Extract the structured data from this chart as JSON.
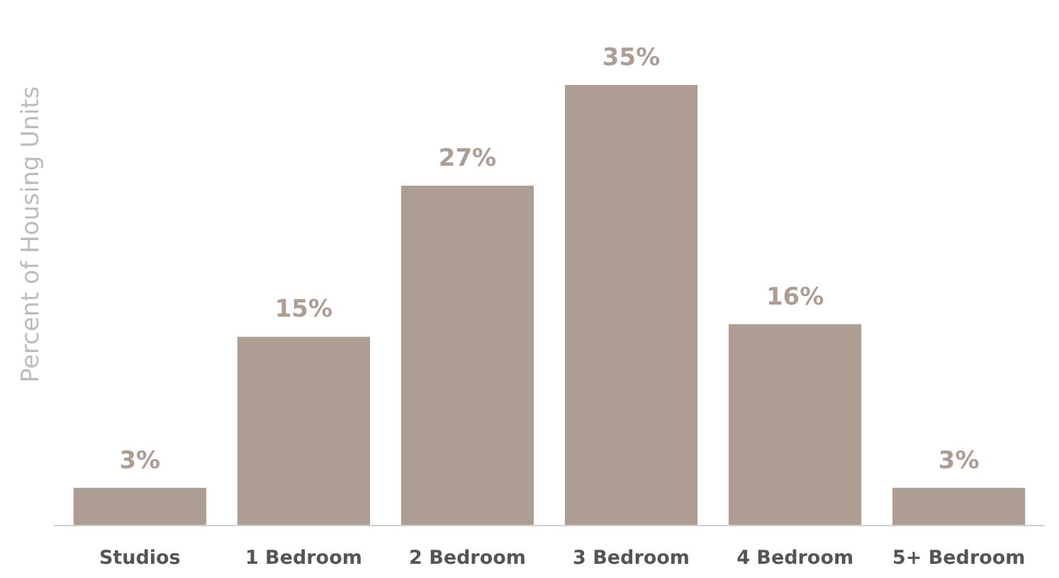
{
  "chart_data": {
    "type": "bar",
    "ylabel": "Percent of Housing Units",
    "categories": [
      "Studios",
      "1 Bedroom",
      "2 Bedroom",
      "3 Bedroom",
      "4 Bedroom",
      "5+ Bedroom"
    ],
    "values": [
      3,
      15,
      27,
      35,
      16,
      3
    ],
    "value_labels": [
      "3%",
      "15%",
      "27%",
      "35%",
      "16%",
      "3%"
    ],
    "color": "#ad9d92"
  }
}
